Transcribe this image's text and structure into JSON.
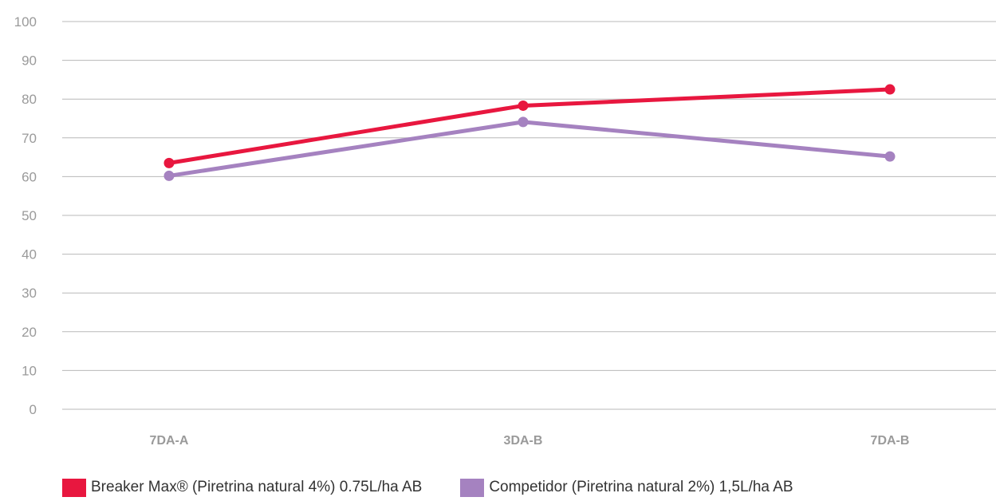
{
  "chart_data": {
    "type": "line",
    "title": "",
    "xlabel": "",
    "ylabel": "",
    "categories": [
      "7DA-A",
      "3DA-B",
      "7DA-B"
    ],
    "ylim": [
      0,
      100
    ],
    "yticks": [
      0,
      10,
      20,
      30,
      40,
      50,
      60,
      70,
      80,
      90,
      100
    ],
    "grid": true,
    "legend_position": "bottom",
    "series": [
      {
        "name": "Breaker Max® (Piretrina natural 4%) 0.75L/ha AB",
        "color": "#e8173f",
        "values": [
          63.5,
          78.3,
          82.5
        ]
      },
      {
        "name": "Competidor (Piretrina natural 2%) 1,5L/ha AB",
        "color": "#a582c0",
        "values": [
          60.2,
          74.1,
          65.2
        ]
      }
    ]
  }
}
